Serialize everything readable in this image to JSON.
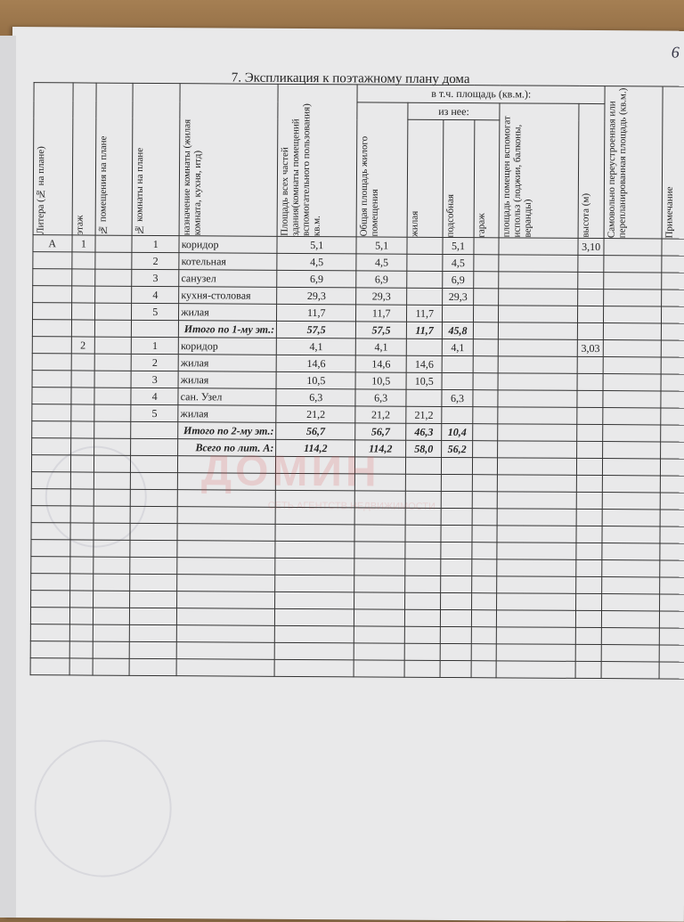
{
  "page_number": "6",
  "title": "7. Экспликация к поэтажному плану дома",
  "headers": {
    "litera": "Литера (№ на плане)",
    "floor": "этаж",
    "premises_no": "№ помещения на плане",
    "room_no": "№ комнаты на плане",
    "purpose": "назначение комнаты (жилая комната, кухня, итд)",
    "total_area": "Площадь всех частей здания(комнаты помещений вспомогательного пользования) кв.м.",
    "incl_area": "в т.ч. площадь (кв.м.):",
    "living_total": "Общая площадь жилого помещения",
    "of_which": "из нее:",
    "living": "жилая",
    "auxiliary": "подсобная",
    "garage": "гараж",
    "aux_use": "площадь помещен вспомогат использ (лоджии, балконы, веранды)",
    "height": "высота (м)",
    "unauthorized": "Самовольно переустроенная или перепланированная площадь (кв.м.)",
    "note": "Примечание"
  },
  "rows": [
    [
      "А",
      "1",
      "",
      "1",
      "коридор",
      "5,1",
      "5,1",
      "",
      "5,1",
      "",
      "",
      "3,10",
      "",
      ""
    ],
    [
      "",
      "",
      "",
      "2",
      "котельная",
      "4,5",
      "4,5",
      "",
      "4,5",
      "",
      "",
      "",
      "",
      ""
    ],
    [
      "",
      "",
      "",
      "3",
      "санузел",
      "6,9",
      "6,9",
      "",
      "6,9",
      "",
      "",
      "",
      "",
      ""
    ],
    [
      "",
      "",
      "",
      "4",
      "кухня-столовая",
      "29,3",
      "29,3",
      "",
      "29,3",
      "",
      "",
      "",
      "",
      ""
    ],
    [
      "",
      "",
      "",
      "5",
      "жилая",
      "11,7",
      "11,7",
      "11,7",
      "",
      "",
      "",
      "",
      "",
      ""
    ],
    [
      "",
      "",
      "",
      "",
      "Итого по 1-му эт.:",
      "57,5",
      "57,5",
      "11,7",
      "45,8",
      "",
      "",
      "",
      "",
      ""
    ],
    [
      "",
      "2",
      "",
      "1",
      "коридор",
      "4,1",
      "4,1",
      "",
      "4,1",
      "",
      "",
      "3,03",
      "",
      ""
    ],
    [
      "",
      "",
      "",
      "2",
      "жилая",
      "14,6",
      "14,6",
      "14,6",
      "",
      "",
      "",
      "",
      "",
      ""
    ],
    [
      "",
      "",
      "",
      "3",
      "жилая",
      "10,5",
      "10,5",
      "10,5",
      "",
      "",
      "",
      "",
      "",
      ""
    ],
    [
      "",
      "",
      "",
      "4",
      "сан. Узел",
      "6,3",
      "6,3",
      "",
      "6,3",
      "",
      "",
      "",
      "",
      ""
    ],
    [
      "",
      "",
      "",
      "5",
      "жилая",
      "21,2",
      "21,2",
      "21,2",
      "",
      "",
      "",
      "",
      "",
      ""
    ],
    [
      "",
      "",
      "",
      "",
      "Итого по 2-му эт.:",
      "56,7",
      "56,7",
      "46,3",
      "10,4",
      "",
      "",
      "",
      "",
      ""
    ],
    [
      "",
      "",
      "",
      "",
      "Всего по лит. А:",
      "114,2",
      "114,2",
      "58,0",
      "56,2",
      "",
      "",
      "",
      "",
      ""
    ]
  ],
  "watermark": {
    "name": "ДОМИН",
    "tagline": "СЕТЬ АГЕНТСТВ НЕДВИЖИМОСТИ"
  }
}
